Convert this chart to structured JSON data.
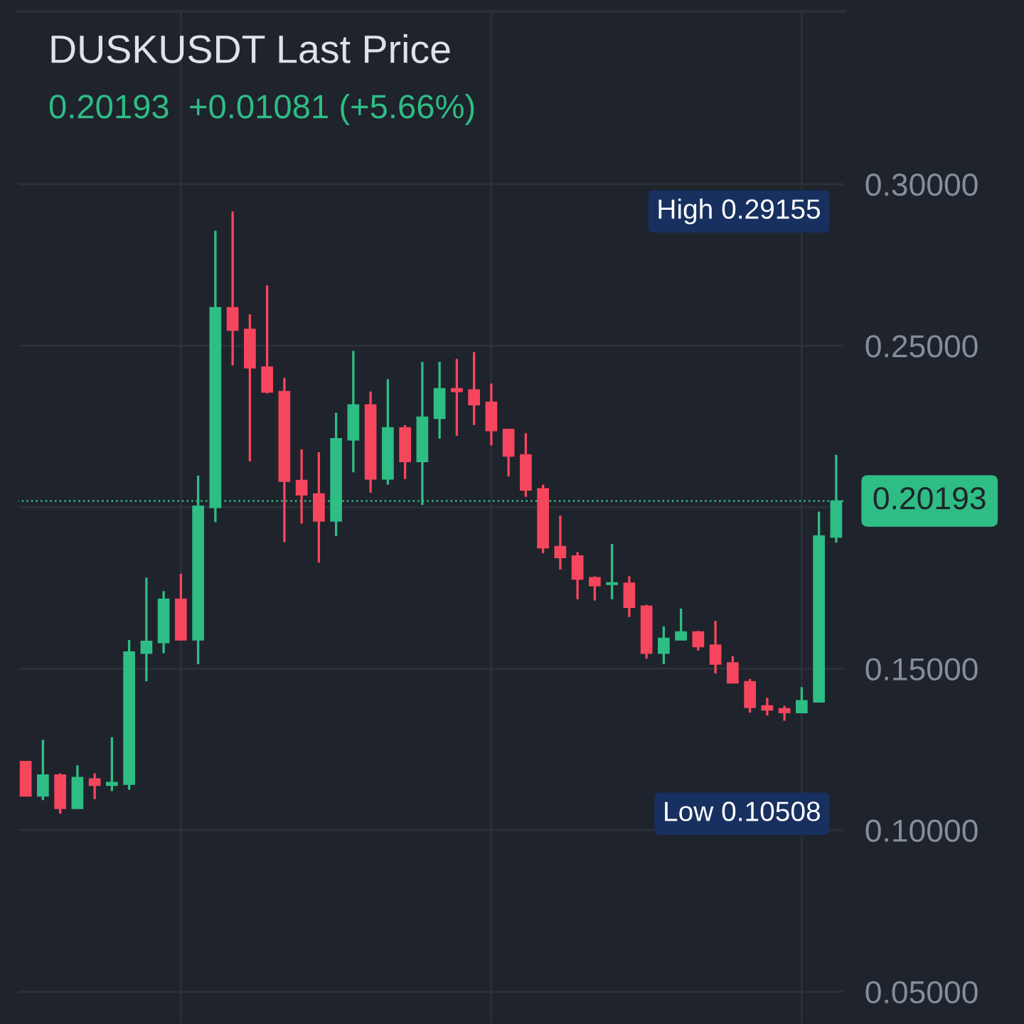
{
  "chart_data": {
    "type": "candlestick",
    "title": "DUSKUSDT Last Price",
    "subtitle": "0.20193  +0.01081 (+5.66%)",
    "categories": [
      null,
      null,
      null,
      null,
      null,
      null,
      null,
      null,
      null,
      null,
      null,
      null,
      null,
      null,
      null,
      null,
      null,
      null,
      null,
      null,
      null,
      null,
      null,
      null,
      null,
      null,
      null,
      null,
      null,
      null,
      null,
      null,
      null,
      null,
      null,
      null,
      null,
      null,
      null,
      null,
      null,
      null,
      null,
      null,
      null,
      null,
      null,
      null
    ],
    "ohlc": [
      [
        0.1213,
        0.1213,
        0.1106,
        0.1106
      ],
      [
        0.1106,
        0.128,
        0.1093,
        0.1171
      ],
      [
        0.1171,
        0.1176,
        0.10508,
        0.1067
      ],
      [
        0.1067,
        0.1201,
        0.1067,
        0.1163
      ],
      [
        0.1159,
        0.1176,
        0.1096,
        0.1139
      ],
      [
        0.1139,
        0.1288,
        0.1121,
        0.1148
      ],
      [
        0.1142,
        0.1589,
        0.1125,
        0.1552
      ],
      [
        0.1548,
        0.1782,
        0.1461,
        0.1585
      ],
      [
        0.1581,
        0.174,
        0.1548,
        0.1715
      ],
      [
        0.1715,
        0.1794,
        0.1589,
        0.1589
      ],
      [
        0.1589,
        0.2098,
        0.1514,
        0.2003
      ],
      [
        0.1999,
        0.2856,
        0.1954,
        0.2618
      ],
      [
        0.2618,
        0.29155,
        0.2439,
        0.2548
      ],
      [
        0.2551,
        0.2597,
        0.2142,
        0.2431
      ],
      [
        0.2434,
        0.2687,
        0.2352,
        0.2356
      ],
      [
        0.2358,
        0.24,
        0.1892,
        0.208
      ],
      [
        0.2083,
        0.2179,
        0.1949,
        0.2038
      ],
      [
        0.2041,
        0.217,
        0.1828,
        0.1957
      ],
      [
        0.1957,
        0.2292,
        0.1911,
        0.2212
      ],
      [
        0.2208,
        0.2484,
        0.2108,
        0.2317
      ],
      [
        0.2317,
        0.2358,
        0.2045,
        0.2087
      ],
      [
        0.2087,
        0.2396,
        0.207,
        0.2246
      ],
      [
        0.2246,
        0.2254,
        0.2087,
        0.2141
      ],
      [
        0.2141,
        0.245,
        0.2007,
        0.2279
      ],
      [
        0.2275,
        0.245,
        0.2212,
        0.2367
      ],
      [
        0.2367,
        0.2459,
        0.2221,
        0.2358
      ],
      [
        0.2363,
        0.248,
        0.2254,
        0.2317
      ],
      [
        0.2325,
        0.2383,
        0.2191,
        0.2237
      ],
      [
        0.2241,
        0.2241,
        0.2095,
        0.2158
      ],
      [
        0.2162,
        0.2229,
        0.2032,
        0.2053
      ],
      [
        0.2057,
        0.207,
        0.1857,
        0.1874
      ],
      [
        0.1878,
        0.1974,
        0.1807,
        0.1844
      ],
      [
        0.1849,
        0.1861,
        0.1715,
        0.1777
      ],
      [
        0.1782,
        0.1786,
        0.1711,
        0.1757
      ],
      [
        0.1761,
        0.1886,
        0.1715,
        0.1766
      ],
      [
        0.1765,
        0.1786,
        0.166,
        0.169
      ],
      [
        0.1694,
        0.1698,
        0.1531,
        0.1548
      ],
      [
        0.1548,
        0.1631,
        0.1514,
        0.1594
      ],
      [
        0.1589,
        0.1686,
        0.1589,
        0.1614
      ],
      [
        0.1614,
        0.1617,
        0.1556,
        0.1568
      ],
      [
        0.1573,
        0.1648,
        0.1485,
        0.1514
      ],
      [
        0.1518,
        0.1539,
        0.1456,
        0.1456
      ],
      [
        0.146,
        0.1468,
        0.1364,
        0.138
      ],
      [
        0.1385,
        0.141,
        0.1355,
        0.1372
      ],
      [
        0.1376,
        0.1385,
        0.1339,
        0.1364
      ],
      [
        0.1364,
        0.1443,
        0.1364,
        0.1401
      ],
      [
        0.1397,
        0.1986,
        0.1397,
        0.1911
      ],
      [
        0.1907,
        0.2162,
        0.189,
        0.20193
      ]
    ],
    "colors": [
      "#f6465d",
      "#2ebd85",
      "#f6465d",
      "#2ebd85",
      "#f6465d",
      "#2ebd85",
      "#2ebd85",
      "#2ebd85",
      "#2ebd85",
      "#f6465d",
      "#2ebd85",
      "#2ebd85",
      "#f6465d",
      "#f6465d",
      "#f6465d",
      "#f6465d",
      "#f6465d",
      "#f6465d",
      "#2ebd85",
      "#2ebd85",
      "#f6465d",
      "#2ebd85",
      "#f6465d",
      "#2ebd85",
      "#2ebd85",
      "#f6465d",
      "#f6465d",
      "#f6465d",
      "#f6465d",
      "#f6465d",
      "#f6465d",
      "#f6465d",
      "#f6465d",
      "#f6465d",
      "#2ebd85",
      "#f6465d",
      "#f6465d",
      "#2ebd85",
      "#2ebd85",
      "#f6465d",
      "#f6465d",
      "#f6465d",
      "#f6465d",
      "#f6465d",
      "#f6465d",
      "#2ebd85",
      "#2ebd85",
      "#2ebd85"
    ],
    "ylim": [
      0.04,
      0.3535
    ],
    "yticks": [
      {
        "value": 0.05,
        "label": "0.05000"
      },
      {
        "value": 0.1,
        "label": "0.10000"
      },
      {
        "value": 0.15,
        "label": "0.15000"
      },
      {
        "value": 0.2,
        "label": null
      },
      {
        "value": 0.25,
        "label": "0.25000"
      },
      {
        "value": 0.3,
        "label": "0.30000"
      }
    ],
    "tick_labels": "y",
    "grid": true,
    "ref_lines": [
      {
        "axis": "y",
        "value": 0.20193,
        "label": "0.20193",
        "color": "#2ebd85",
        "line_style": "dotted"
      }
    ],
    "annotations": [
      "High 0.29155",
      "Low 0.10508"
    ]
  }
}
